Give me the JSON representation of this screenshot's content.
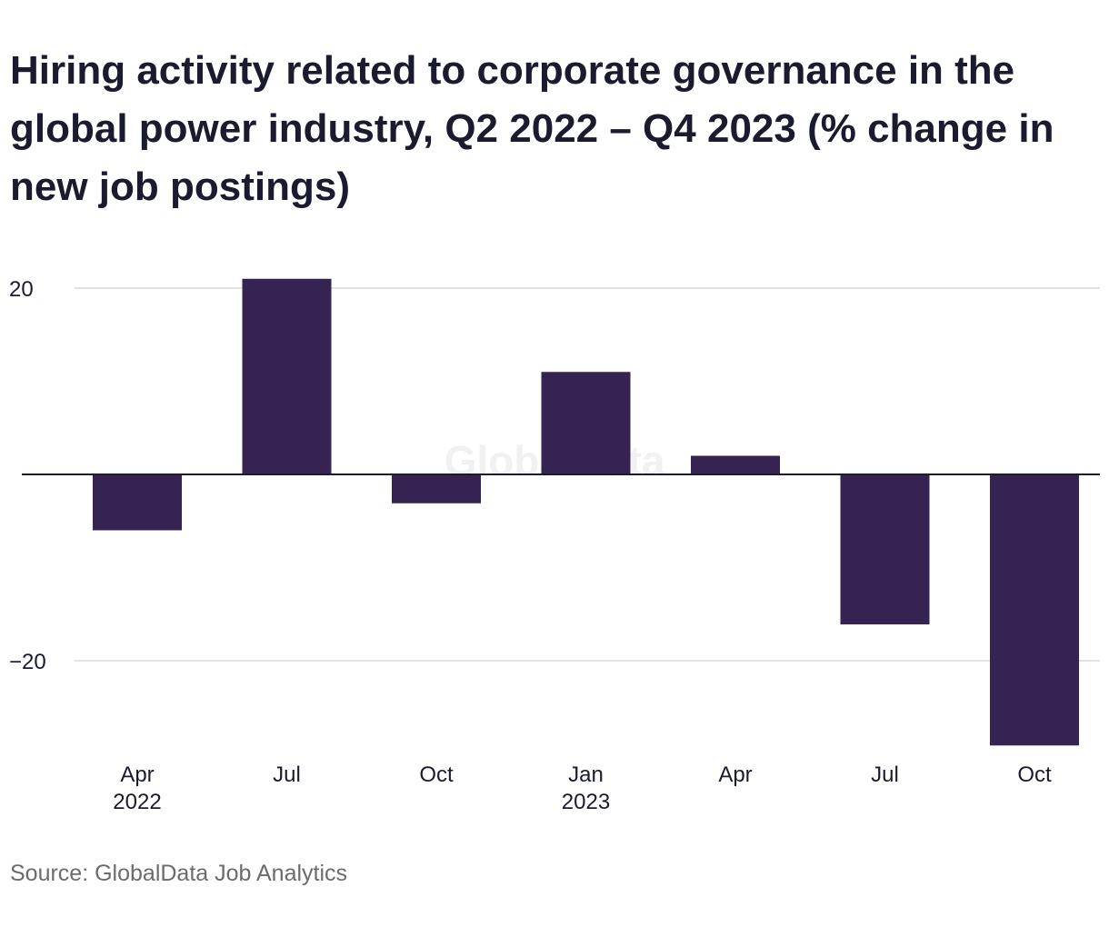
{
  "chart": {
    "title": "Hiring activity related to corporate governance in the global power industry, Q2 2022 – Q4 2023 (% change in new job postings)",
    "source": "Source: GlobalData Job Analytics",
    "watermark": "GlobalData"
  },
  "colors": {
    "bar": "#352452",
    "gridline": "#d9d9d9",
    "zero_line": "#1b1b2f",
    "text": "#1b1b2f",
    "source_text": "#6b6b6b"
  },
  "chart_data": {
    "type": "bar",
    "title": "Hiring activity related to corporate governance in the global power industry, Q2 2022 – Q4 2023 (% change in new job postings)",
    "xlabel": "",
    "ylabel": "",
    "categories": [
      "Apr 2022",
      "Jul 2022",
      "Oct 2022",
      "Jan 2023",
      "Apr 2023",
      "Jul 2023",
      "Oct 2023"
    ],
    "x_tick_labels": [
      [
        "Apr",
        "2022"
      ],
      [
        "Jul"
      ],
      [
        "Oct"
      ],
      [
        "Jan",
        "2023"
      ],
      [
        "Apr"
      ],
      [
        "Jul"
      ],
      [
        "Oct"
      ]
    ],
    "values": [
      -6.0,
      21.0,
      -3.1,
      11.0,
      2.0,
      -16.1,
      -29.1
    ],
    "y_ticks": [
      20,
      -20
    ],
    "y_tick_labels": [
      "20",
      "−20"
    ],
    "ylim": [
      -30.0,
      21.0
    ],
    "grid": true,
    "legend": "none"
  }
}
